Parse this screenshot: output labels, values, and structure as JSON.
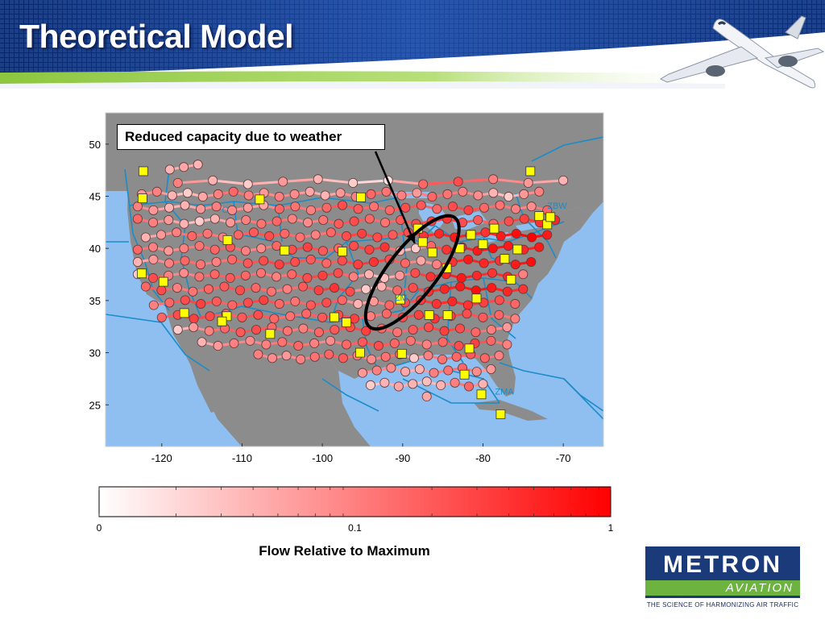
{
  "slide": {
    "title": "Theoretical Model",
    "callout": "Reduced capacity due to weather"
  },
  "colors": {
    "banner_dark": "#0d2a6a",
    "banner_light": "#2b5cb8",
    "accent_green": "#8dc63f",
    "ocean": "#8fbff0",
    "land": "#8c8c8c",
    "center_boundary": "#1a8cc8",
    "yellow_marker": "#ffff00",
    "flow_high": "#ff0000",
    "flow_low": "#ffffff"
  },
  "chart_data": {
    "type": "scatter",
    "title": "",
    "xlabel": "",
    "ylabel": "",
    "xlim": [
      -127,
      -65
    ],
    "ylim": [
      21,
      53
    ],
    "x_ticks": [
      -120,
      -110,
      -100,
      -90,
      -80,
      -70
    ],
    "y_ticks": [
      25,
      30,
      35,
      40,
      45,
      50
    ],
    "grid": false,
    "center_labels": [
      {
        "text": "ZBW",
        "lon": -72,
        "lat": 43.8
      },
      {
        "text": "ZM",
        "lon": -91,
        "lat": 35.0
      },
      {
        "text": "ZMA",
        "lon": -78.5,
        "lat": 26.0
      },
      {
        "text": "C",
        "lon": -112.5,
        "lat": 43.4
      }
    ],
    "annotation": {
      "text": "Reduced capacity due to weather",
      "target_lon": -88.5,
      "target_lat": 40.5
    },
    "weather_region": {
      "center_lon": -88.8,
      "center_lat": 37.7,
      "description": "ellipse"
    },
    "airports": [
      [
        -122.3,
        47.4
      ],
      [
        -122.4,
        44.8
      ],
      [
        -107.8,
        44.7
      ],
      [
        -95.2,
        44.9
      ],
      [
        -74.1,
        47.4
      ],
      [
        -88.1,
        41.9
      ],
      [
        -86.3,
        39.6
      ],
      [
        -81.5,
        41.3
      ],
      [
        -80.0,
        40.4
      ],
      [
        -75.7,
        39.9
      ],
      [
        -78.6,
        41.9
      ],
      [
        -73.0,
        43.1
      ],
      [
        -72.0,
        42.3
      ],
      [
        -111.8,
        40.8
      ],
      [
        -104.7,
        39.8
      ],
      [
        -97.5,
        39.7
      ],
      [
        -84.5,
        38.1
      ],
      [
        -76.5,
        37.0
      ],
      [
        -80.8,
        35.2
      ],
      [
        -90.3,
        35.1
      ],
      [
        -119.8,
        36.8
      ],
      [
        -111.9,
        33.5
      ],
      [
        -98.5,
        33.4
      ],
      [
        -112.5,
        33.0
      ],
      [
        -106.5,
        31.8
      ],
      [
        -97.0,
        32.9
      ],
      [
        -95.3,
        30.0
      ],
      [
        -90.1,
        29.9
      ],
      [
        -81.7,
        30.4
      ],
      [
        -82.3,
        27.9
      ],
      [
        -80.2,
        26.0
      ],
      [
        -77.8,
        24.1
      ],
      [
        -117.2,
        33.8
      ],
      [
        -122.5,
        37.6
      ],
      [
        -86.7,
        33.6
      ],
      [
        -84.4,
        33.6
      ],
      [
        -82.9,
        40.0
      ],
      [
        -71.6,
        43.0
      ],
      [
        -87.5,
        40.6
      ],
      [
        -77.3,
        39.0
      ]
    ],
    "flow_scale": {
      "label": "Flow Relative to Maximum",
      "min": 0,
      "max": 1,
      "tick_labels": [
        "0",
        "0.1",
        "1"
      ],
      "tick_values": [
        0,
        0.1,
        1
      ]
    },
    "flow_rows": [
      {
        "lat": 47.8,
        "from_lon": -119,
        "to_lon": -115.5,
        "flow": [
          0.3,
          0.35,
          0.3
        ]
      },
      {
        "lat": 46.4,
        "from_lon": -118,
        "to_lon": -70,
        "flow": [
          0.5,
          0.3,
          0.2,
          0.4,
          0.3,
          0.2,
          0.1,
          0.6,
          0.7,
          0.5,
          0.4,
          0.3
        ]
      },
      {
        "lat": 45.2,
        "from_lon": -122.5,
        "to_lon": -73,
        "flow": [
          0.4,
          0.5,
          0.3,
          0.2,
          0.35,
          0.5,
          0.6,
          0.5,
          0.4,
          0.5,
          0.45,
          0.35,
          0.3,
          0.4,
          0.5,
          0.6,
          0.55,
          0.5,
          0.4,
          0.6,
          0.55,
          0.5,
          0.45,
          0.3,
          0.2,
          0.4,
          0.5
        ]
      },
      {
        "lat": 43.9,
        "from_lon": -123,
        "to_lon": -72,
        "flow": [
          0.5,
          0.4,
          0.3,
          0.3,
          0.4,
          0.5,
          0.45,
          0.4,
          0.35,
          0.6,
          0.55,
          0.5,
          0.6,
          0.7,
          0.65,
          0.55,
          0.6,
          0.7,
          0.65,
          0.6,
          0.7,
          0.75,
          0.6,
          0.55,
          0.5,
          0.45,
          0.6
        ]
      },
      {
        "lat": 42.6,
        "from_lon": -123,
        "to_lon": -71,
        "flow": [
          0.6,
          0.5,
          0.4,
          0.3,
          0.2,
          0.3,
          0.4,
          0.5,
          0.55,
          0.6,
          0.5,
          0.45,
          0.55,
          0.65,
          0.7,
          0.6,
          0.55,
          0.65,
          0.7,
          0.75,
          0.8,
          0.7,
          0.65,
          0.6,
          0.7,
          0.75,
          0.8,
          0.85
        ]
      },
      {
        "lat": 41.3,
        "from_lon": -122,
        "to_lon": -72,
        "flow": [
          0.3,
          0.4,
          0.5,
          0.6,
          0.55,
          0.5,
          0.6,
          0.65,
          0.7,
          0.6,
          0.55,
          0.5,
          0.6,
          0.7,
          0.75,
          0.7,
          0.65,
          0.7,
          0.8,
          0.85,
          0.9,
          0.85,
          0.8,
          0.9,
          0.95,
          1.0,
          0.9
        ]
      },
      {
        "lat": 40.0,
        "from_lon": -123,
        "to_lon": -73,
        "flow": [
          0.6,
          0.5,
          0.4,
          0.5,
          0.55,
          0.6,
          0.65,
          0.5,
          0.45,
          0.6,
          0.7,
          0.75,
          0.65,
          0.6,
          0.7,
          0.75,
          0.8,
          0.3,
          0.2,
          0.6,
          0.8,
          0.85,
          0.9,
          0.95,
          0.9,
          0.85,
          0.9
        ]
      },
      {
        "lat": 38.7,
        "from_lon": -123,
        "to_lon": -74,
        "flow": [
          0.3,
          0.4,
          0.5,
          0.6,
          0.55,
          0.5,
          0.6,
          0.65,
          0.7,
          0.75,
          0.7,
          0.65,
          0.6,
          0.7,
          0.75,
          0.8,
          0.7,
          0.6,
          0.35,
          0.5,
          0.8,
          0.9,
          0.85,
          0.8,
          0.9,
          0.95
        ]
      },
      {
        "lat": 37.4,
        "from_lon": -123,
        "to_lon": -75,
        "flow": [
          0.2,
          0.7,
          0.5,
          0.45,
          0.55,
          0.6,
          0.65,
          0.6,
          0.55,
          0.5,
          0.6,
          0.7,
          0.75,
          0.7,
          0.5,
          0.3,
          0.25,
          0.4,
          0.7,
          0.8,
          0.85,
          0.9,
          0.85,
          0.8,
          0.85,
          0.5
        ]
      },
      {
        "lat": 36.1,
        "from_lon": -122,
        "to_lon": -75,
        "flow": [
          0.6,
          0.7,
          0.5,
          0.55,
          0.6,
          0.65,
          0.7,
          0.6,
          0.55,
          0.5,
          0.65,
          0.75,
          0.8,
          0.7,
          0.2,
          0.3,
          0.6,
          0.7,
          0.8,
          0.85,
          0.9,
          0.95,
          0.9,
          0.85,
          0.8
        ]
      },
      {
        "lat": 34.8,
        "from_lon": -121,
        "to_lon": -76,
        "flow": [
          0.5,
          0.6,
          0.7,
          0.75,
          0.65,
          0.6,
          0.7,
          0.75,
          0.6,
          0.55,
          0.65,
          0.7,
          0.6,
          0.3,
          0.4,
          0.6,
          0.7,
          0.75,
          0.8,
          0.85,
          0.8,
          0.75,
          0.7,
          0.6
        ]
      },
      {
        "lat": 33.5,
        "from_lon": -120,
        "to_lon": -76,
        "flow": [
          0.6,
          0.7,
          0.75,
          0.7,
          0.6,
          0.65,
          0.7,
          0.6,
          0.55,
          0.6,
          0.65,
          0.7,
          0.75,
          0.5,
          0.6,
          0.7,
          0.75,
          0.8,
          0.75,
          0.7,
          0.65,
          0.6,
          0.5
        ]
      },
      {
        "lat": 32.2,
        "from_lon": -118,
        "to_lon": -77,
        "flow": [
          0.2,
          0.4,
          0.5,
          0.6,
          0.65,
          0.7,
          0.6,
          0.55,
          0.5,
          0.6,
          0.65,
          0.7,
          0.75,
          0.6,
          0.55,
          0.65,
          0.7,
          0.75,
          0.7,
          0.6,
          0.5,
          0.4
        ]
      },
      {
        "lat": 30.9,
        "from_lon": -115,
        "to_lon": -77,
        "flow": [
          0.3,
          0.4,
          0.5,
          0.45,
          0.5,
          0.55,
          0.6,
          0.5,
          0.45,
          0.6,
          0.65,
          0.7,
          0.6,
          0.55,
          0.5,
          0.6,
          0.7,
          0.75,
          0.6,
          0.5
        ]
      },
      {
        "lat": 29.6,
        "from_lon": -108,
        "to_lon": -78,
        "flow": [
          0.5,
          0.45,
          0.4,
          0.5,
          0.55,
          0.6,
          0.65,
          0.5,
          0.45,
          0.55,
          0.6,
          0.2,
          0.5,
          0.55,
          0.6,
          0.65,
          0.6,
          0.5
        ]
      },
      {
        "lat": 28.3,
        "from_lon": -95,
        "to_lon": -79,
        "flow": [
          0.4,
          0.5,
          0.45,
          0.35,
          0.3,
          0.5,
          0.55,
          0.6,
          0.45,
          0.4
        ]
      },
      {
        "lat": 27.0,
        "from_lon": -94,
        "to_lon": -80,
        "flow": [
          0.2,
          0.3,
          0.35,
          0.3,
          0.25,
          0.3,
          0.5,
          0.6,
          0.3
        ]
      },
      {
        "lat": 25.8,
        "from_lon": -87,
        "to_lon": -87,
        "flow": [
          0.35
        ]
      }
    ]
  }
}
